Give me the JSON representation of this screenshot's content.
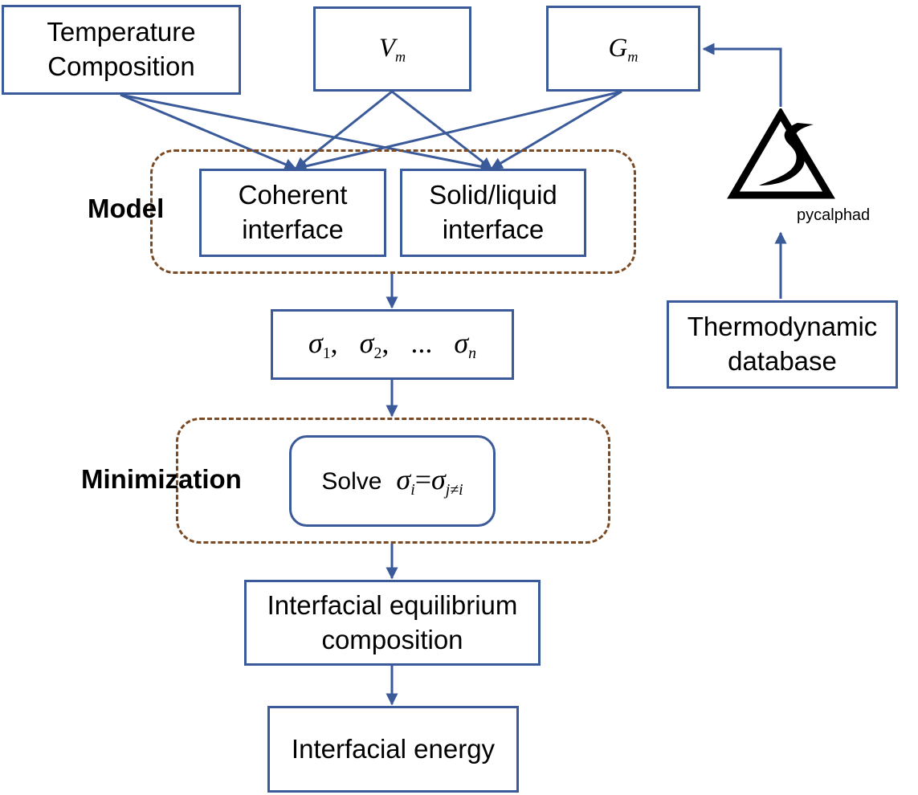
{
  "nodes": {
    "temp_comp": {
      "line1": "Temperature",
      "line2": "Composition"
    },
    "vm": {
      "symbol": "V",
      "sub": "m"
    },
    "gm": {
      "symbol": "G",
      "sub": "m"
    },
    "coherent": {
      "line1": "Coherent",
      "line2": "interface"
    },
    "solid_liquid": {
      "line1": "Solid/liquid",
      "line2": "interface"
    },
    "sigmas": {
      "s1": "σ",
      "s1_sub": "1",
      "sep1": ",",
      "s2": "σ",
      "s2_sub": "2",
      "sep2": ",",
      "dots": "...",
      "sn": "σ",
      "sn_sub": "n"
    },
    "solve": {
      "word": "Solve",
      "lhs": "σ",
      "lhs_sub": "i",
      "eq": "=",
      "rhs": "σ",
      "rhs_sub": "j≠i"
    },
    "equilibrium": {
      "line1": "Interfacial equilibrium",
      "line2": "composition"
    },
    "energy": {
      "label": "Interfacial energy"
    },
    "thermo_db": {
      "line1": "Thermodynamic",
      "line2": "database"
    }
  },
  "groups": {
    "model": "Model",
    "minimization": "Minimization"
  },
  "logo": {
    "caption": "pycalphad"
  },
  "colors": {
    "edge": "#3a5a9a",
    "group_border": "#7a4a24"
  }
}
